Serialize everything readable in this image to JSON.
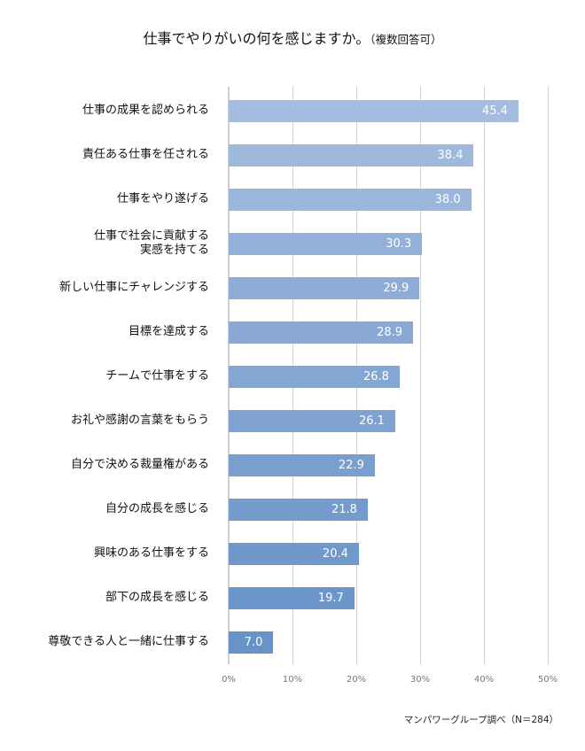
{
  "title": {
    "main": "仕事でやりがいの何を感じますか。",
    "sub": "（複数回答可）"
  },
  "source": "マンパワーグループ調べ（N＝284）",
  "axis": {
    "ticks": [
      "0%",
      "10%",
      "20%",
      "30%",
      "40%",
      "50%"
    ]
  },
  "colors": {
    "bar_top": "#a3bcdf",
    "bar_bottom": "#6893c8",
    "grid": "#d4d4d4",
    "tick_text": "#777777",
    "value_text": "#ffffff"
  },
  "chart_data": {
    "type": "bar",
    "orientation": "horizontal",
    "title": "仕事でやりがいの何を感じますか。（複数回答可）",
    "xlabel": "",
    "ylabel": "",
    "xlim": [
      0,
      50
    ],
    "x_ticks": [
      "0%",
      "10%",
      "20%",
      "30%",
      "40%",
      "50%"
    ],
    "grid": true,
    "legend": "none",
    "source_note": "マンパワーグループ調べ（N＝284）",
    "categories": [
      "仕事の成果を認められる",
      "責任ある仕事を任される",
      "仕事をやり遂げる",
      "仕事で社会に貢献する実感を持てる",
      "新しい仕事にチャレンジする",
      "目標を達成する",
      "チームで仕事をする",
      "お礼や感謝の言葉をもらう",
      "自分で決める裁量権がある",
      "自分の成長を感じる",
      "興味のある仕事をする",
      "部下の成長を感じる",
      "尊敬できる人と一緒に仕事する"
    ],
    "values": [
      45.4,
      38.4,
      38.0,
      30.3,
      29.9,
      28.9,
      26.8,
      26.1,
      22.9,
      21.8,
      20.4,
      19.7,
      7.0
    ]
  },
  "rows": [
    {
      "label": "仕事の成果を認められる",
      "label2": "",
      "value": "45.4",
      "color": "#a3bcdf"
    },
    {
      "label": "責任ある仕事を任される",
      "label2": "",
      "value": "38.4",
      "color": "#9fb9dd"
    },
    {
      "label": "仕事をやり遂げる",
      "label2": "",
      "value": "38.0",
      "color": "#9ab6db"
    },
    {
      "label": "仕事で社会に貢献する",
      "label2": "実感を持てる",
      "value": "30.3",
      "color": "#93b1d8"
    },
    {
      "label": "新しい仕事にチャレンジする",
      "label2": "",
      "value": "29.9",
      "color": "#8eadd6"
    },
    {
      "label": "目標を達成する",
      "label2": "",
      "value": "28.9",
      "color": "#89a9d4"
    },
    {
      "label": "チームで仕事をする",
      "label2": "",
      "value": "26.8",
      "color": "#84a6d2"
    },
    {
      "label": "お礼や感謝の言葉をもらう",
      "label2": "",
      "value": "26.1",
      "color": "#7fa2d0"
    },
    {
      "label": "自分で決める裁量権がある",
      "label2": "",
      "value": "22.9",
      "color": "#7a9fce"
    },
    {
      "label": "自分の成長を感じる",
      "label2": "",
      "value": "21.8",
      "color": "#759bcc"
    },
    {
      "label": "興味のある仕事をする",
      "label2": "",
      "value": "20.4",
      "color": "#7098ca"
    },
    {
      "label": "部下の成長を感じる",
      "label2": "",
      "value": "19.7",
      "color": "#6c95c9"
    },
    {
      "label": "尊敬できる人と一緒に仕事する",
      "label2": "",
      "value": "7.0",
      "color": "#6893c8"
    }
  ]
}
